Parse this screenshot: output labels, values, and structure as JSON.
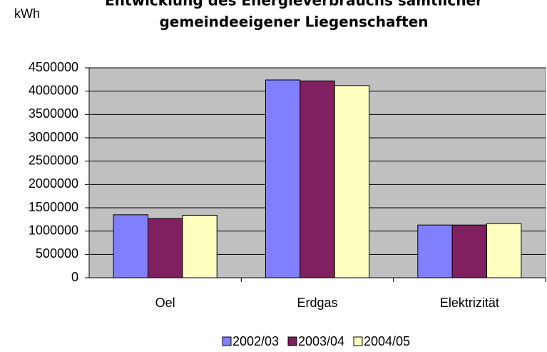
{
  "chart_data": {
    "type": "bar",
    "title": [
      "Entwicklung des Energieverbrauchs sämtlicher",
      "gemeindeeigener Liegenschaften"
    ],
    "y_label": "kWh",
    "categories": [
      "Oel",
      "Erdgas",
      "Elektrizität"
    ],
    "series": [
      {
        "name": "2002/03",
        "color": "#8080ff",
        "values": [
          1350000,
          4240000,
          1130000
        ]
      },
      {
        "name": "2003/04",
        "color": "#802060",
        "values": [
          1270000,
          4220000,
          1130000
        ]
      },
      {
        "name": "2004/05",
        "color": "#ffffc0",
        "values": [
          1340000,
          4120000,
          1160000
        ]
      }
    ],
    "ylim": [
      0,
      4500000
    ],
    "yticks": [
      0,
      500000,
      1000000,
      1500000,
      2000000,
      2500000,
      3000000,
      3500000,
      4000000,
      4500000
    ],
    "grid": true,
    "legend": "bottom",
    "plot_background": "#c0c0c0"
  }
}
